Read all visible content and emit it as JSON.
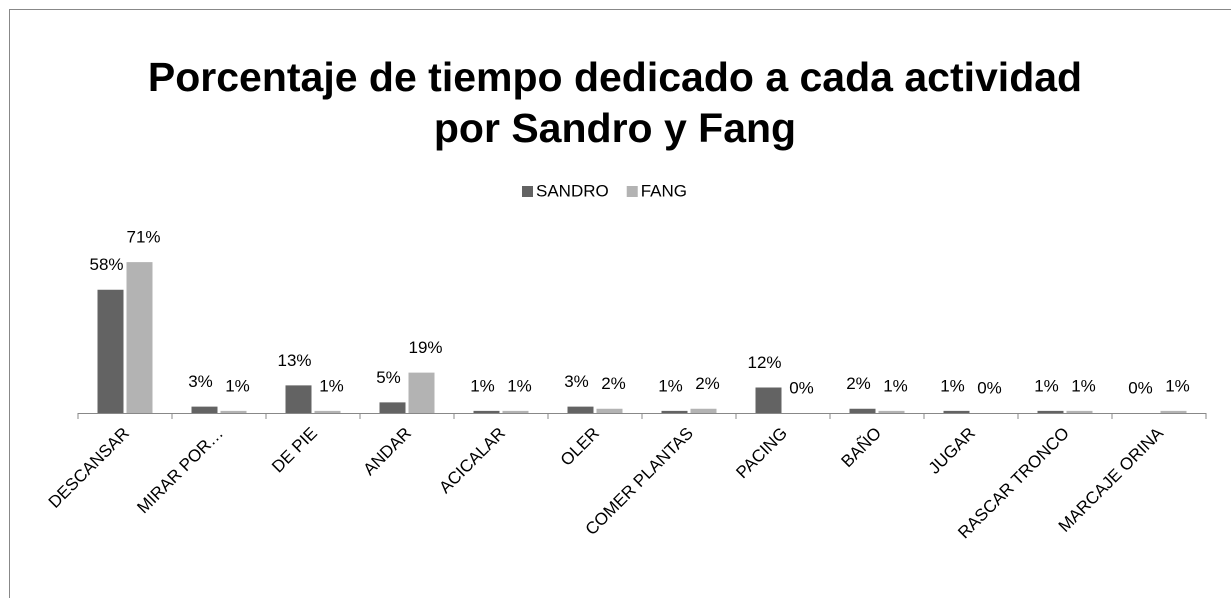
{
  "chart_data": {
    "type": "bar",
    "title": "Porcentaje de tiempo dedicado a cada actividad por Sandro y Fang",
    "categories": [
      "DESCANSAR",
      "MIRAR POR…",
      "DE PIE",
      "ANDAR",
      "ACICALAR",
      "OLER",
      "COMER PLANTAS",
      "PACING",
      "BAÑO",
      "JUGAR",
      "RASCAR TRONCO",
      "MARCAJE ORINA"
    ],
    "series": [
      {
        "name": "SANDRO",
        "color": "#636363",
        "values": [
          58,
          3,
          13,
          5,
          1,
          3,
          1,
          12,
          2,
          1,
          1,
          0
        ],
        "value_labels": [
          "58%",
          "3%",
          "13%",
          "5%",
          "1%",
          "3%",
          "1%",
          "12%",
          "2%",
          "1%",
          "1%",
          "0%"
        ]
      },
      {
        "name": "FANG",
        "color": "#b3b3b3",
        "values": [
          71,
          1,
          1,
          19,
          1,
          2,
          2,
          0,
          1,
          0,
          1,
          1
        ],
        "value_labels": [
          "71%",
          "1%",
          "1%",
          "19%",
          "1%",
          "2%",
          "2%",
          "0%",
          "1%",
          "0%",
          "1%",
          "1%"
        ]
      }
    ],
    "ylim": [
      0,
      80
    ],
    "legend": "top"
  }
}
